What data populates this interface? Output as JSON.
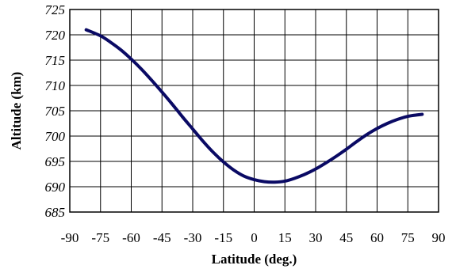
{
  "chart_data": {
    "type": "line",
    "title": "",
    "xlabel": "Latitude (deg.)",
    "ylabel": "Altitude (km)",
    "xlim": [
      -90,
      90
    ],
    "ylim": [
      685,
      725
    ],
    "x_ticks": [
      -90,
      -75,
      -60,
      -45,
      -30,
      -15,
      0,
      15,
      30,
      45,
      60,
      75,
      90
    ],
    "y_ticks": [
      685,
      690,
      695,
      700,
      705,
      710,
      715,
      720,
      725
    ],
    "grid": true,
    "line_color": "#0a0a64",
    "series": [
      {
        "x": [
          -82,
          -75,
          -70,
          -65,
          -60,
          -55,
          -50,
          -45,
          -40,
          -35,
          -30,
          -25,
          -20,
          -15,
          -10,
          -5,
          0,
          5,
          10,
          15,
          20,
          25,
          30,
          35,
          40,
          45,
          50,
          55,
          60,
          65,
          70,
          75,
          80,
          82
        ],
        "values": [
          721.0,
          719.8,
          718.5,
          717.0,
          715.2,
          713.2,
          711.0,
          708.7,
          706.3,
          703.8,
          701.4,
          699.0,
          696.8,
          694.9,
          693.3,
          692.1,
          691.4,
          691.0,
          690.9,
          691.1,
          691.7,
          692.5,
          693.5,
          694.7,
          696.0,
          697.4,
          698.9,
          700.3,
          701.5,
          702.5,
          703.3,
          703.9,
          704.2,
          704.3
        ]
      }
    ]
  }
}
